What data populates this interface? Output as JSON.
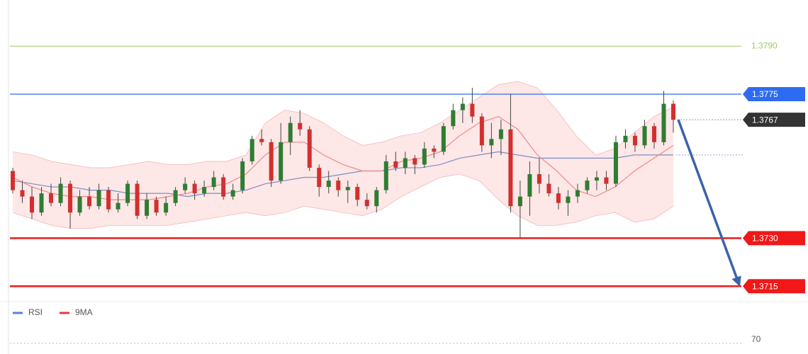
{
  "chart_data": {
    "type": "candlestick",
    "ylim": [
      1.37,
      1.38
    ],
    "up_color": "#2e7d32",
    "down_color": "#d32f2f",
    "ohlc": [
      [
        1.3751,
        1.3752,
        1.3744,
        1.3745
      ],
      [
        1.3745,
        1.3748,
        1.3741,
        1.3743
      ],
      [
        1.3743,
        1.3746,
        1.3736,
        1.3738
      ],
      [
        1.3738,
        1.3746,
        1.3737,
        1.3744
      ],
      [
        1.3744,
        1.3747,
        1.374,
        1.3741
      ],
      [
        1.3741,
        1.3749,
        1.374,
        1.3747
      ],
      [
        1.3747,
        1.3748,
        1.3733,
        1.3738
      ],
      [
        1.3738,
        1.3745,
        1.3737,
        1.3743
      ],
      [
        1.3743,
        1.3746,
        1.3739,
        1.374
      ],
      [
        1.374,
        1.3747,
        1.3739,
        1.3745
      ],
      [
        1.3745,
        1.3746,
        1.3738,
        1.3739
      ],
      [
        1.3739,
        1.3744,
        1.3738,
        1.3741
      ],
      [
        1.3741,
        1.3748,
        1.374,
        1.3747
      ],
      [
        1.3747,
        1.3748,
        1.3736,
        1.3737
      ],
      [
        1.3737,
        1.3744,
        1.3736,
        1.3742
      ],
      [
        1.3742,
        1.3743,
        1.3737,
        1.3738
      ],
      [
        1.3738,
        1.3743,
        1.3737,
        1.3741
      ],
      [
        1.3741,
        1.3746,
        1.374,
        1.3745
      ],
      [
        1.3745,
        1.3749,
        1.3744,
        1.3747
      ],
      [
        1.3747,
        1.3748,
        1.3742,
        1.3744
      ],
      [
        1.3744,
        1.3748,
        1.3743,
        1.3746
      ],
      [
        1.3746,
        1.3751,
        1.3745,
        1.3749
      ],
      [
        1.3749,
        1.375,
        1.3742,
        1.3743
      ],
      [
        1.3743,
        1.3747,
        1.3742,
        1.3745
      ],
      [
        1.3745,
        1.3755,
        1.3744,
        1.3754
      ],
      [
        1.3754,
        1.3762,
        1.3753,
        1.3761
      ],
      [
        1.3761,
        1.3764,
        1.3759,
        1.376
      ],
      [
        1.376,
        1.3761,
        1.3746,
        1.3748
      ],
      [
        1.3748,
        1.3766,
        1.3747,
        1.376
      ],
      [
        1.376,
        1.3768,
        1.3756,
        1.3766
      ],
      [
        1.3766,
        1.377,
        1.3762,
        1.3764
      ],
      [
        1.3764,
        1.3765,
        1.3751,
        1.3752
      ],
      [
        1.3752,
        1.3753,
        1.3743,
        1.3746
      ],
      [
        1.3746,
        1.3751,
        1.3744,
        1.3748
      ],
      [
        1.3748,
        1.3749,
        1.3743,
        1.3745
      ],
      [
        1.3745,
        1.3748,
        1.3741,
        1.3746
      ],
      [
        1.3746,
        1.3747,
        1.374,
        1.3742
      ],
      [
        1.3742,
        1.3744,
        1.3739,
        1.374
      ],
      [
        1.374,
        1.3746,
        1.3738,
        1.3745
      ],
      [
        1.3745,
        1.3756,
        1.3744,
        1.3754
      ],
      [
        1.3754,
        1.3757,
        1.3751,
        1.3752
      ],
      [
        1.3752,
        1.3757,
        1.375,
        1.3755
      ],
      [
        1.3755,
        1.3756,
        1.375,
        1.3753
      ],
      [
        1.3753,
        1.376,
        1.3752,
        1.3758
      ],
      [
        1.3758,
        1.3759,
        1.3755,
        1.3757
      ],
      [
        1.3757,
        1.3766,
        1.3756,
        1.3765
      ],
      [
        1.3765,
        1.3772,
        1.3764,
        1.377
      ],
      [
        1.377,
        1.3774,
        1.3766,
        1.3772
      ],
      [
        1.3772,
        1.3777,
        1.3766,
        1.3768
      ],
      [
        1.3768,
        1.3769,
        1.3757,
        1.3759
      ],
      [
        1.3759,
        1.3766,
        1.3755,
        1.3761
      ],
      [
        1.3761,
        1.3767,
        1.3756,
        1.3764
      ],
      [
        1.3764,
        1.3775,
        1.3738,
        1.374
      ],
      [
        1.374,
        1.3748,
        1.373,
        1.3743
      ],
      [
        1.3743,
        1.3754,
        1.3737,
        1.375
      ],
      [
        1.375,
        1.3755,
        1.3744,
        1.3747
      ],
      [
        1.3747,
        1.375,
        1.3743,
        1.3744
      ],
      [
        1.3744,
        1.3746,
        1.3739,
        1.3741
      ],
      [
        1.3741,
        1.3745,
        1.3737,
        1.3743
      ],
      [
        1.3743,
        1.3747,
        1.3741,
        1.3745
      ],
      [
        1.3745,
        1.3749,
        1.3744,
        1.3748
      ],
      [
        1.3748,
        1.3751,
        1.3745,
        1.3749
      ],
      [
        1.3749,
        1.3751,
        1.3745,
        1.3747
      ],
      [
        1.3747,
        1.3762,
        1.3746,
        1.376
      ],
      [
        1.376,
        1.3764,
        1.3758,
        1.3762
      ],
      [
        1.3762,
        1.3763,
        1.3757,
        1.3759
      ],
      [
        1.3759,
        1.3767,
        1.3758,
        1.3765
      ],
      [
        1.3765,
        1.3766,
        1.3758,
        1.376
      ],
      [
        1.376,
        1.3776,
        1.3759,
        1.3772
      ],
      [
        1.3772,
        1.3773,
        1.3763,
        1.3767
      ]
    ],
    "band": {
      "color": "#f4a6a6",
      "upper": [
        1.3757,
        1.3756,
        1.3754,
        1.3753,
        1.3752,
        1.3752,
        1.3753,
        1.3754,
        1.3753,
        1.3753,
        1.3754,
        1.3754,
        1.3756,
        1.3766,
        1.377,
        1.3769,
        1.3766,
        1.3762,
        1.3759,
        1.376,
        1.3762,
        1.3763,
        1.3766,
        1.377,
        1.3774,
        1.3778,
        1.3779,
        1.3777,
        1.377,
        1.3762,
        1.3756,
        1.3758,
        1.3763,
        1.3768,
        1.3771
      ],
      "lower": [
        1.3738,
        1.3736,
        1.3734,
        1.3733,
        1.3733,
        1.3734,
        1.3734,
        1.3734,
        1.3734,
        1.3735,
        1.3736,
        1.3737,
        1.3738,
        1.3737,
        1.3738,
        1.374,
        1.3739,
        1.3738,
        1.3737,
        1.3739,
        1.3743,
        1.3746,
        1.3749,
        1.375,
        1.3748,
        1.3742,
        1.3737,
        1.3734,
        1.3734,
        1.3735,
        1.3737,
        1.3738,
        1.3735,
        1.3736,
        1.374
      ]
    },
    "ma_lines": [
      {
        "color": "#7b8fc4",
        "values": [
          1.3748,
          1.3747,
          1.3746,
          1.3746,
          1.3745,
          1.3745,
          1.3744,
          1.3744,
          1.3744,
          1.3743,
          1.3744,
          1.3744,
          1.3745,
          1.3747,
          1.3748,
          1.3749,
          1.3749,
          1.375,
          1.3751,
          1.3751,
          1.3752,
          1.3752,
          1.3753,
          1.3755,
          1.3756,
          1.3757,
          1.3756,
          1.3755,
          1.3755,
          1.3755,
          1.3755,
          1.3755,
          1.3756,
          1.3756,
          1.3756
        ]
      },
      {
        "color": "#f08a8a",
        "values": [
          1.3749,
          1.3746,
          1.3744,
          1.3743,
          1.3743,
          1.3742,
          1.3742,
          1.3742,
          1.3743,
          1.3744,
          1.3746,
          1.3747,
          1.375,
          1.3756,
          1.376,
          1.376,
          1.3756,
          1.3753,
          1.3751,
          1.3751,
          1.3754,
          1.3755,
          1.3757,
          1.3762,
          1.3766,
          1.3768,
          1.3764,
          1.3756,
          1.3751,
          1.3745,
          1.3743,
          1.3746,
          1.3751,
          1.3755,
          1.3759
        ]
      }
    ],
    "levels": [
      {
        "value": 1.379,
        "label": "1.3790",
        "color": "#9ccc65",
        "style": "text"
      },
      {
        "value": 1.3775,
        "label": "1.3775",
        "color": "#2f6bf0",
        "style": "badge"
      },
      {
        "value": 1.3767,
        "label": "1.3767",
        "color": "#333333",
        "style": "current"
      },
      {
        "value": 1.373,
        "label": "1.3730",
        "color": "#f01818",
        "style": "badge"
      },
      {
        "value": 1.3715,
        "label": "1.3715",
        "color": "#f01818",
        "style": "badge"
      }
    ],
    "arrow_color": "#3c62a8",
    "rsi": {
      "legend": [
        {
          "name": "RSI",
          "color": "#5b7ee5"
        },
        {
          "name": "9MA",
          "color": "#e53935"
        }
      ],
      "yticks": [
        70
      ]
    }
  }
}
